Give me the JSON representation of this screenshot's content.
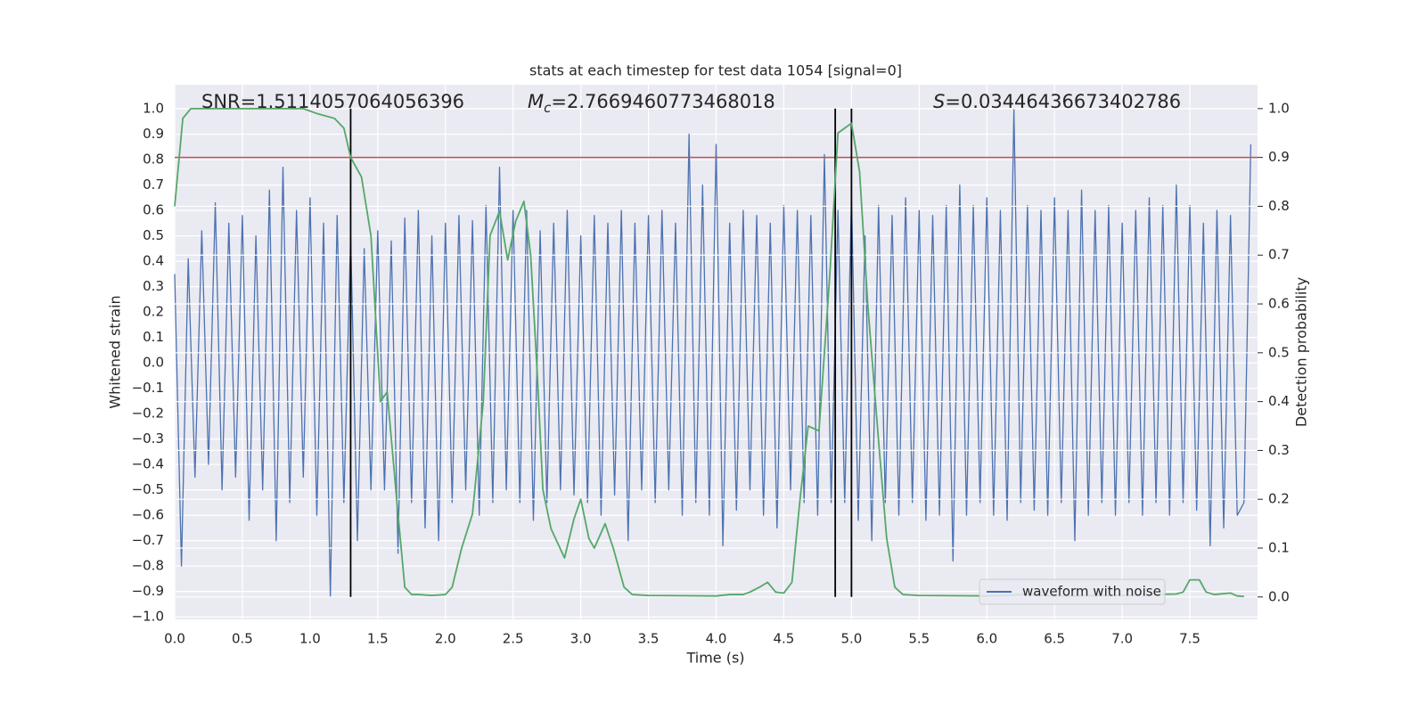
{
  "chart_data": {
    "type": "line",
    "title": "stats at each timestep for test data 1054 [signal=0]",
    "xlabel": "Time (s)",
    "ylabel": "Whitened strain",
    "y2label": "Detection probability",
    "xlim": [
      0,
      8
    ],
    "ylim": [
      -1.01,
      1.095
    ],
    "y2lim": [
      -0.046,
      1.049
    ],
    "grid": true,
    "legend": "lower right",
    "xticks": [
      {
        "value": 0,
        "label": "0.0"
      },
      {
        "value": 0.5,
        "label": "0.5"
      },
      {
        "value": 1,
        "label": "1.0"
      },
      {
        "value": 1.5,
        "label": "1.5"
      },
      {
        "value": 2,
        "label": "2.0"
      },
      {
        "value": 2.5,
        "label": "2.5"
      },
      {
        "value": 3,
        "label": "3.0"
      },
      {
        "value": 3.5,
        "label": "3.5"
      },
      {
        "value": 4,
        "label": "4.0"
      },
      {
        "value": 4.5,
        "label": "4.5"
      },
      {
        "value": 5,
        "label": "5.0"
      },
      {
        "value": 5.5,
        "label": "5.5"
      },
      {
        "value": 6,
        "label": "6.0"
      },
      {
        "value": 6.5,
        "label": "6.5"
      },
      {
        "value": 7,
        "label": "7.0"
      },
      {
        "value": 7.5,
        "label": "7.5"
      }
    ],
    "yticks": [
      {
        "value": -1,
        "label": "−1.0"
      },
      {
        "value": -0.9,
        "label": "−0.9"
      },
      {
        "value": -0.8,
        "label": "−0.8"
      },
      {
        "value": -0.7,
        "label": "−0.7"
      },
      {
        "value": -0.6,
        "label": "−0.6"
      },
      {
        "value": -0.5,
        "label": "−0.5"
      },
      {
        "value": -0.4,
        "label": "−0.4"
      },
      {
        "value": -0.3,
        "label": "−0.3"
      },
      {
        "value": -0.2,
        "label": "−0.2"
      },
      {
        "value": -0.1,
        "label": "−0.1"
      },
      {
        "value": 0,
        "label": "0.0"
      },
      {
        "value": 0.1,
        "label": "0.1"
      },
      {
        "value": 0.2,
        "label": "0.2"
      },
      {
        "value": 0.3,
        "label": "0.3"
      },
      {
        "value": 0.4,
        "label": "0.4"
      },
      {
        "value": 0.5,
        "label": "0.5"
      },
      {
        "value": 0.6,
        "label": "0.6"
      },
      {
        "value": 0.7,
        "label": "0.7"
      },
      {
        "value": 0.8,
        "label": "0.8"
      },
      {
        "value": 0.9,
        "label": "0.9"
      },
      {
        "value": 1,
        "label": "1.0"
      }
    ],
    "y2ticks": [
      {
        "value": 0,
        "label": "0.0"
      },
      {
        "value": 0.1,
        "label": "0.1"
      },
      {
        "value": 0.2,
        "label": "0.2"
      },
      {
        "value": 0.3,
        "label": "0.3"
      },
      {
        "value": 0.4,
        "label": "0.4"
      },
      {
        "value": 0.5,
        "label": "0.5"
      },
      {
        "value": 0.6,
        "label": "0.6"
      },
      {
        "value": 0.7,
        "label": "0.7"
      },
      {
        "value": 0.8,
        "label": "0.8"
      },
      {
        "value": 0.9,
        "label": "0.9"
      },
      {
        "value": 1,
        "label": "1.0"
      }
    ],
    "series": [
      {
        "name": "waveform with noise",
        "color": "#4c72b0",
        "x": [
          0,
          0.05,
          0.1,
          0.15,
          0.2,
          0.25,
          0.3,
          0.35,
          0.4,
          0.45,
          0.5,
          0.55,
          0.6,
          0.65,
          0.7,
          0.75,
          0.8,
          0.85,
          0.9,
          0.95,
          1,
          1.05,
          1.1,
          1.15,
          1.2,
          1.25,
          1.3,
          1.35,
          1.4,
          1.45,
          1.5,
          1.55,
          1.6,
          1.65,
          1.7,
          1.75,
          1.8,
          1.85,
          1.9,
          1.95,
          2,
          2.05,
          2.1,
          2.15,
          2.2,
          2.25,
          2.3,
          2.35,
          2.4,
          2.45,
          2.5,
          2.55,
          2.6,
          2.65,
          2.7,
          2.75,
          2.8,
          2.85,
          2.9,
          2.95,
          3,
          3.05,
          3.1,
          3.15,
          3.2,
          3.25,
          3.3,
          3.35,
          3.4,
          3.45,
          3.5,
          3.55,
          3.6,
          3.65,
          3.7,
          3.75,
          3.8,
          3.85,
          3.9,
          3.95,
          4,
          4.05,
          4.1,
          4.15,
          4.2,
          4.25,
          4.3,
          4.35,
          4.4,
          4.45,
          4.5,
          4.55,
          4.6,
          4.65,
          4.7,
          4.75,
          4.8,
          4.85,
          4.9,
          4.95,
          5,
          5.05,
          5.1,
          5.15,
          5.2,
          5.25,
          5.3,
          5.35,
          5.4,
          5.45,
          5.5,
          5.55,
          5.6,
          5.65,
          5.7,
          5.75,
          5.8,
          5.85,
          5.9,
          5.95,
          6,
          6.05,
          6.1,
          6.15,
          6.2,
          6.25,
          6.3,
          6.35,
          6.4,
          6.45,
          6.5,
          6.55,
          6.6,
          6.65,
          6.7,
          6.75,
          6.8,
          6.85,
          6.9,
          6.95,
          7,
          7.05,
          7.1,
          7.15,
          7.2,
          7.25,
          7.3,
          7.35,
          7.4,
          7.45,
          7.5,
          7.55,
          7.6,
          7.65,
          7.7,
          7.75,
          7.8,
          7.85,
          7.9,
          7.95
        ],
        "values": [
          0.35,
          -0.8,
          0.41,
          -0.45,
          0.52,
          -0.4,
          0.63,
          -0.5,
          0.55,
          -0.45,
          0.58,
          -0.62,
          0.5,
          -0.5,
          0.68,
          -0.7,
          0.77,
          -0.55,
          0.6,
          -0.45,
          0.65,
          -0.6,
          0.55,
          -0.92,
          0.58,
          -0.55,
          0.5,
          -0.7,
          0.45,
          -0.5,
          0.52,
          -0.5,
          0.48,
          -0.75,
          0.57,
          -0.55,
          0.6,
          -0.65,
          0.5,
          -0.7,
          0.55,
          -0.55,
          0.58,
          -0.5,
          0.56,
          -0.6,
          0.62,
          -0.55,
          0.77,
          -0.5,
          0.6,
          -0.55,
          0.6,
          -0.62,
          0.52,
          -0.55,
          0.55,
          -0.5,
          0.6,
          -0.52,
          0.5,
          -0.55,
          0.58,
          -0.6,
          0.55,
          -0.52,
          0.6,
          -0.7,
          0.55,
          -0.5,
          0.58,
          -0.55,
          0.6,
          -0.5,
          0.55,
          -0.6,
          0.9,
          -0.55,
          0.7,
          -0.6,
          0.86,
          -0.72,
          0.55,
          -0.58,
          0.6,
          -0.5,
          0.58,
          -0.6,
          0.55,
          -0.65,
          0.62,
          -0.5,
          0.6,
          -0.55,
          0.58,
          -0.6,
          0.82,
          -0.55,
          0.6,
          -0.55,
          0.65,
          -0.62,
          0.5,
          -0.7,
          0.62,
          -0.55,
          0.58,
          -0.6,
          0.65,
          -0.55,
          0.6,
          -0.62,
          0.58,
          -0.6,
          0.62,
          -0.78,
          0.7,
          -0.6,
          0.62,
          -0.55,
          0.65,
          -0.6,
          0.6,
          -0.62,
          1.0,
          -0.55,
          0.62,
          -0.58,
          0.6,
          -0.6,
          0.65,
          -0.55,
          0.6,
          -0.7,
          0.68,
          -0.6,
          0.6,
          -0.55,
          0.62,
          -0.6,
          0.55,
          -0.55,
          0.6,
          -0.6,
          0.65,
          -0.55,
          0.62,
          -0.6,
          0.7,
          -0.55,
          0.62,
          -0.58,
          0.55,
          -0.72,
          0.6,
          -0.65,
          0.58,
          -0.6,
          -0.55,
          0.86
        ]
      },
      {
        "color": "#55a868",
        "axis": "y2",
        "x": [
          0,
          0.06,
          0.12,
          0.5,
          0.95,
          1.05,
          1.18,
          1.25,
          1.3,
          1.38,
          1.45,
          1.52,
          1.57,
          1.64,
          1.7,
          1.75,
          1.8,
          1.9,
          2,
          2.05,
          2.12,
          2.2,
          2.28,
          2.33,
          2.4,
          2.46,
          2.52,
          2.58,
          2.63,
          2.68,
          2.72,
          2.78,
          2.88,
          2.95,
          3,
          3.06,
          3.1,
          3.18,
          3.24,
          3.32,
          3.38,
          3.5,
          4,
          4.1,
          4.2,
          4.25,
          4.32,
          4.38,
          4.44,
          4.5,
          4.56,
          4.62,
          4.68,
          4.76,
          4.84,
          4.9,
          5,
          5.06,
          5.12,
          5.2,
          5.26,
          5.32,
          5.38,
          5.5,
          6,
          6.3,
          6.5,
          7,
          7.2,
          7.4,
          7.45,
          7.5,
          7.57,
          7.62,
          7.68,
          7.8,
          7.85,
          7.9
        ],
        "values": [
          0.8,
          0.98,
          1.0,
          1.0,
          1.0,
          0.99,
          0.98,
          0.96,
          0.9,
          0.86,
          0.74,
          0.4,
          0.42,
          0.2,
          0.02,
          0.005,
          0.005,
          0.003,
          0.005,
          0.02,
          0.1,
          0.17,
          0.4,
          0.74,
          0.79,
          0.69,
          0.77,
          0.81,
          0.7,
          0.45,
          0.22,
          0.14,
          0.08,
          0.16,
          0.2,
          0.12,
          0.1,
          0.15,
          0.1,
          0.02,
          0.005,
          0.003,
          0.002,
          0.005,
          0.005,
          0.01,
          0.02,
          0.03,
          0.01,
          0.008,
          0.03,
          0.2,
          0.35,
          0.34,
          0.66,
          0.95,
          0.97,
          0.87,
          0.6,
          0.32,
          0.12,
          0.02,
          0.005,
          0.003,
          0.002,
          0.005,
          0.002,
          0.003,
          0.005,
          0.006,
          0.01,
          0.035,
          0.035,
          0.01,
          0.005,
          0.008,
          0.002,
          0.001
        ]
      }
    ],
    "hlines": [
      {
        "y": 0.9,
        "axis": "y2",
        "color": "#c44e52"
      }
    ],
    "vlines": {
      "x": [
        1.3,
        4.88,
        5.0
      ],
      "ymin": 0,
      "ymax": 1,
      "axis": "y2",
      "color": "#000000"
    },
    "annotations": [
      {
        "text": "SNR=1.5114057064056396"
      },
      {
        "symbol": "M",
        "subscript": "c",
        "text": "=2.7669460773468018"
      },
      {
        "symbol": "S",
        "text": "=0.03446436673402786"
      }
    ]
  }
}
